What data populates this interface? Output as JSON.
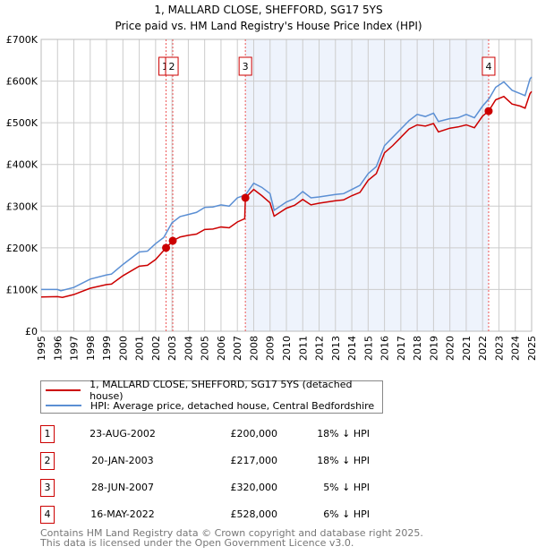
{
  "chart_data": {
    "type": "line",
    "title": "1, MALLARD CLOSE, SHEFFORD, SG17 5YS",
    "subtitle": "Price paid vs. HM Land Registry's House Price Index (HPI)",
    "xlim": [
      1995,
      2025
    ],
    "ylim": [
      0,
      700000
    ],
    "x_ticks": [
      "1995",
      "1996",
      "1997",
      "1998",
      "1999",
      "2000",
      "2001",
      "2002",
      "2003",
      "2004",
      "2005",
      "2006",
      "2007",
      "2008",
      "2009",
      "2010",
      "2011",
      "2012",
      "2013",
      "2014",
      "2015",
      "2016",
      "2017",
      "2018",
      "2019",
      "2020",
      "2021",
      "2022",
      "2023",
      "2024",
      "2025"
    ],
    "y_ticks": [
      {
        "v": 0,
        "label": "£0"
      },
      {
        "v": 100000,
        "label": "£100K"
      },
      {
        "v": 200000,
        "label": "£200K"
      },
      {
        "v": 300000,
        "label": "£300K"
      },
      {
        "v": 400000,
        "label": "£400K"
      },
      {
        "v": 500000,
        "label": "£500K"
      },
      {
        "v": 600000,
        "label": "£600K"
      },
      {
        "v": 700000,
        "label": "£700K"
      }
    ],
    "grid": true,
    "shaded_range": [
      2007.49,
      2022.37
    ],
    "series": [
      {
        "name": "1, MALLARD CLOSE, SHEFFORD, SG17 5YS (detached house)",
        "color": "#cc0000",
        "x": [
          1995,
          1996,
          1996.3,
          1997,
          1998,
          1999,
          1999.3,
          2000,
          2001,
          2001.5,
          2002,
          2002.64,
          2003.05,
          2003.5,
          2004,
          2004.5,
          2005,
          2005.5,
          2006,
          2006.5,
          2007,
          2007.45,
          2007.49,
          2008,
          2008.5,
          2009,
          2009.25,
          2010,
          2010.5,
          2011,
          2011.5,
          2012,
          2012.5,
          2013,
          2013.5,
          2014,
          2014.5,
          2015,
          2015.5,
          2016,
          2016.5,
          2017,
          2017.5,
          2018,
          2018.5,
          2019,
          2019.3,
          2020,
          2020.5,
          2021,
          2021.5,
          2022,
          2022.37,
          2022.8,
          2023.3,
          2023.8,
          2024.3,
          2024.6,
          2024.9,
          2025
        ],
        "y": [
          82000,
          83000,
          81000,
          88000,
          103000,
          112000,
          113000,
          133000,
          156000,
          158000,
          172000,
          200000,
          217000,
          226000,
          230000,
          233000,
          244000,
          245000,
          250000,
          248000,
          262000,
          270000,
          320000,
          340000,
          325000,
          308000,
          276000,
          295000,
          302000,
          316000,
          303000,
          307000,
          310000,
          313000,
          315000,
          325000,
          333000,
          362000,
          378000,
          428000,
          445000,
          465000,
          485000,
          495000,
          492000,
          498000,
          478000,
          487000,
          490000,
          495000,
          488000,
          516000,
          528000,
          555000,
          563000,
          545000,
          540000,
          535000,
          570000,
          575000
        ]
      },
      {
        "name": "HPI: Average price, detached house, Central Bedfordshire",
        "color": "#5b8fd4",
        "x": [
          1995,
          1996,
          1996.2,
          1997,
          1998,
          1999,
          1999.3,
          2000,
          2001,
          2001.5,
          2002,
          2002.5,
          2003,
          2003.5,
          2004,
          2004.5,
          2005,
          2005.5,
          2006,
          2006.5,
          2007,
          2007.5,
          2008,
          2008.5,
          2009,
          2009.25,
          2010,
          2010.5,
          2011,
          2011.5,
          2012,
          2012.5,
          2013,
          2013.5,
          2014,
          2014.5,
          2015,
          2015.5,
          2016,
          2016.5,
          2017,
          2017.5,
          2018,
          2018.5,
          2019,
          2019.3,
          2020,
          2020.5,
          2021,
          2021.5,
          2022,
          2022.4,
          2022.8,
          2023.3,
          2023.8,
          2024.3,
          2024.6,
          2024.9,
          2025
        ],
        "y": [
          100000,
          100000,
          97000,
          105000,
          125000,
          135000,
          137000,
          160000,
          190000,
          192000,
          210000,
          225000,
          260000,
          275000,
          280000,
          285000,
          297000,
          298000,
          303000,
          300000,
          320000,
          327000,
          355000,
          345000,
          330000,
          290000,
          310000,
          318000,
          335000,
          320000,
          322000,
          325000,
          328000,
          330000,
          340000,
          350000,
          378000,
          395000,
          445000,
          465000,
          485000,
          505000,
          520000,
          515000,
          523000,
          503000,
          510000,
          512000,
          520000,
          512000,
          540000,
          558000,
          585000,
          598000,
          578000,
          570000,
          565000,
          605000,
          610000
        ]
      }
    ],
    "sales": [
      {
        "id": "1",
        "x": 2002.64,
        "date": "23-AUG-2002",
        "price": 200000,
        "price_label": "£200,000",
        "hpi": "18% ↓ HPI"
      },
      {
        "id": "2",
        "x": 2003.05,
        "date": "20-JAN-2003",
        "price": 217000,
        "price_label": "£217,000",
        "hpi": "18% ↓ HPI"
      },
      {
        "id": "3",
        "x": 2007.49,
        "date": "28-JUN-2007",
        "price": 320000,
        "price_label": "£320,000",
        "hpi": "5% ↓ HPI"
      },
      {
        "id": "4",
        "x": 2022.37,
        "date": "16-MAY-2022",
        "price": 528000,
        "price_label": "£528,000",
        "hpi": "6% ↓ HPI"
      }
    ],
    "legend_placement": "below"
  },
  "footer": {
    "line1": "Contains HM Land Registry data © Crown copyright and database right 2025.",
    "line2": "This data is licensed under the Open Government Licence v3.0."
  }
}
